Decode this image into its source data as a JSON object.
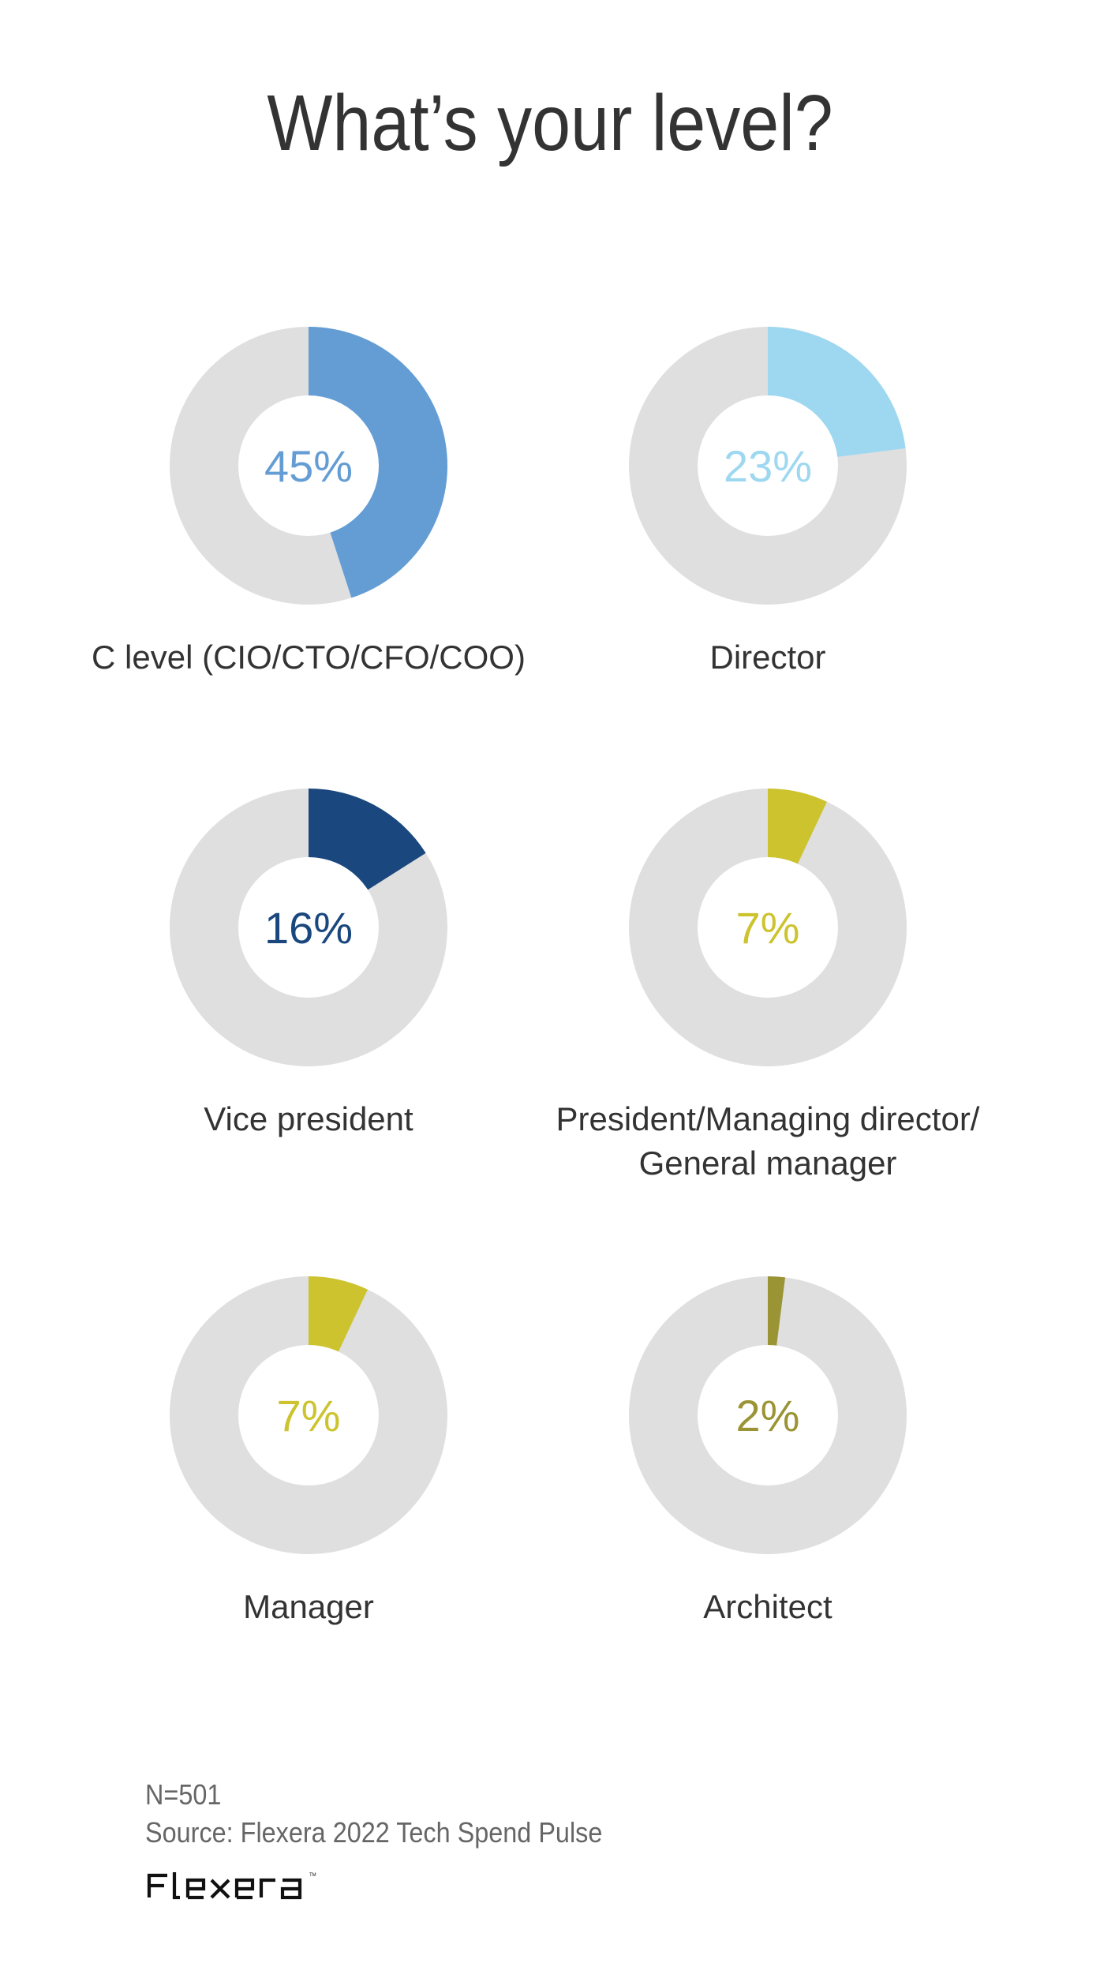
{
  "title": "What’s your level?",
  "colors": {
    "track": "#DFDFDF",
    "label_text": "#333333",
    "footer_text": "#666666"
  },
  "chart_data": {
    "type": "donut",
    "title": "What’s your level?",
    "unit": "%",
    "items": [
      {
        "category": "C level (CIO/CTO/CFO/COO)",
        "label_lines": [
          "C level (CIO/CTO/CFO/COO)"
        ],
        "value": 45,
        "display": "45%",
        "color": "#649DD4"
      },
      {
        "category": "Director",
        "label_lines": [
          "Director"
        ],
        "value": 23,
        "display": "23%",
        "color": "#9ED8F0"
      },
      {
        "category": "Vice president",
        "label_lines": [
          "Vice president"
        ],
        "value": 16,
        "display": "16%",
        "color": "#1A477D"
      },
      {
        "category": "President/Managing director/ General manager",
        "label_lines": [
          "President/Managing director/",
          "General manager"
        ],
        "value": 7,
        "display": "7%",
        "color": "#CCC32E"
      },
      {
        "category": "Manager",
        "label_lines": [
          "Manager"
        ],
        "value": 7,
        "display": "7%",
        "color": "#CCC32E"
      },
      {
        "category": "Architect",
        "label_lines": [
          "Architect"
        ],
        "value": 2,
        "display": "2%",
        "color": "#9A9434"
      }
    ],
    "total": 100
  },
  "footer": {
    "n": "N=501",
    "source": "Source: Flexera 2022 Tech Spend Pulse",
    "logo_text": "flexera"
  }
}
